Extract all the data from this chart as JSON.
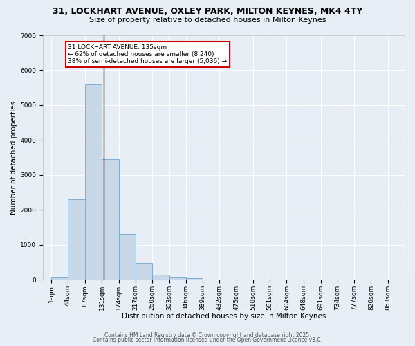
{
  "title_line1": "31, LOCKHART AVENUE, OXLEY PARK, MILTON KEYNES, MK4 4TY",
  "title_line2": "Size of property relative to detached houses in Milton Keynes",
  "xlabel": "Distribution of detached houses by size in Milton Keynes",
  "ylabel": "Number of detached properties",
  "bin_labels": [
    "1sqm",
    "44sqm",
    "87sqm",
    "131sqm",
    "174sqm",
    "217sqm",
    "260sqm",
    "303sqm",
    "346sqm",
    "389sqm",
    "432sqm",
    "475sqm",
    "518sqm",
    "561sqm",
    "604sqm",
    "648sqm",
    "691sqm",
    "734sqm",
    "777sqm",
    "820sqm",
    "863sqm"
  ],
  "bin_edges": [
    1,
    44,
    87,
    131,
    174,
    217,
    260,
    303,
    346,
    389,
    432,
    475,
    518,
    561,
    604,
    648,
    691,
    734,
    777,
    820,
    863,
    906
  ],
  "bar_heights": [
    75,
    2300,
    5600,
    3450,
    1320,
    480,
    150,
    70,
    50,
    10,
    5,
    2,
    1,
    0,
    0,
    0,
    0,
    0,
    0,
    0,
    0
  ],
  "bar_color": "#c8d8e8",
  "bar_edgecolor": "#7bafd4",
  "bar_linewidth": 0.7,
  "property_size": 135,
  "property_line_color": "#000000",
  "annotation_text": "31 LOCKHART AVENUE: 135sqm\n← 62% of detached houses are smaller (8,240)\n38% of semi-detached houses are larger (5,036) →",
  "annotation_box_color": "#ffffff",
  "annotation_box_edgecolor": "#cc0000",
  "ylim": [
    0,
    7000
  ],
  "yticks": [
    0,
    1000,
    2000,
    3000,
    4000,
    5000,
    6000,
    7000
  ],
  "background_color": "#e8eef5",
  "plot_background": "#e8eef5",
  "grid_color": "#ffffff",
  "footer_line1": "Contains HM Land Registry data © Crown copyright and database right 2025.",
  "footer_line2": "Contains public sector information licensed under the Open Government Licence v3.0.",
  "title_fontsize": 9,
  "subtitle_fontsize": 8,
  "xlabel_fontsize": 7.5,
  "ylabel_fontsize": 7.5,
  "tick_fontsize": 6.5,
  "annotation_fontsize": 6.5,
  "footer_fontsize": 5.5
}
